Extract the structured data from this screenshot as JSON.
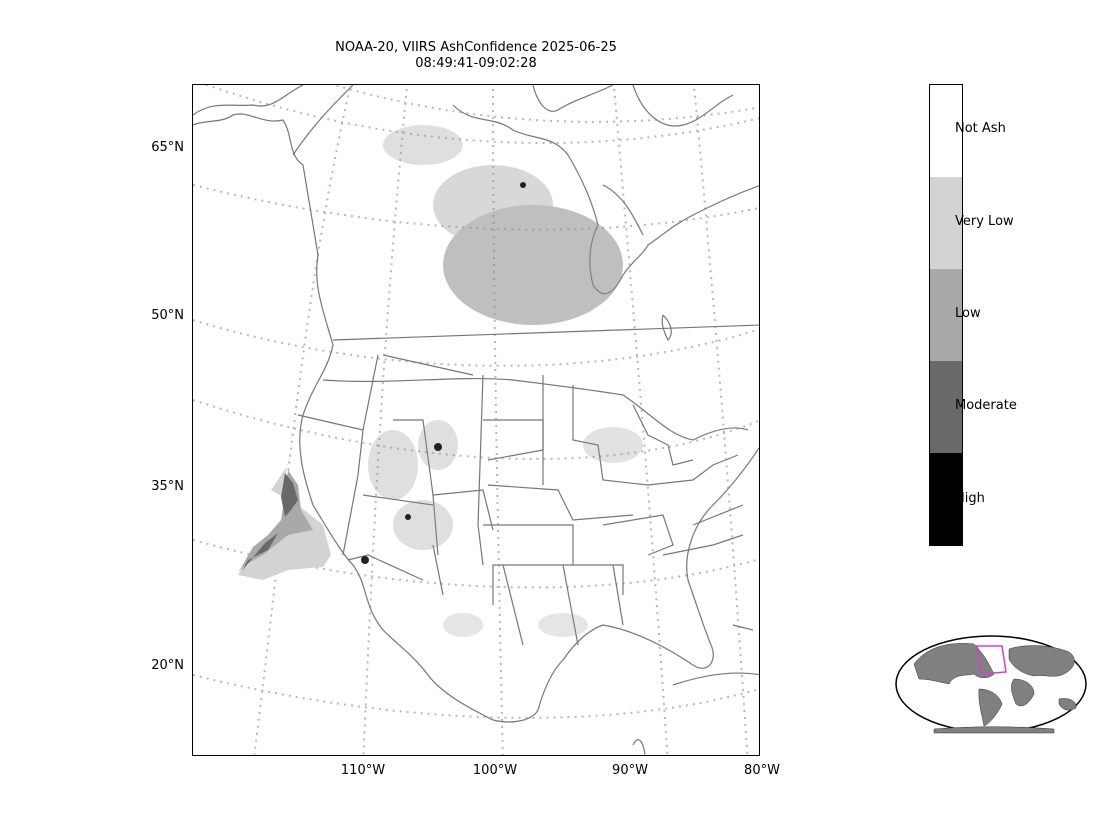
{
  "title": {
    "line1": "NOAA-20, VIIRS AshConfidence 2025-06-25",
    "line2": "08:49:41-09:02:28"
  },
  "axes": {
    "lat_labels": [
      "65°N",
      "50°N",
      "35°N",
      "20°N"
    ],
    "lon_labels": [
      "110°W",
      "100°W",
      "90°W",
      "80°W"
    ]
  },
  "colorbar": {
    "categories": [
      "Not Ash",
      "Very Low",
      "Low",
      "Moderate",
      "High"
    ],
    "colors": [
      "#ffffff",
      "#d3d3d3",
      "#a9a9a9",
      "#696969",
      "#000000"
    ]
  },
  "styles": {
    "map_line_color": "#777777",
    "graticule_color": "#b8b8b8",
    "inset_land_color": "#808080",
    "inset_box_color": "#d040d0"
  }
}
